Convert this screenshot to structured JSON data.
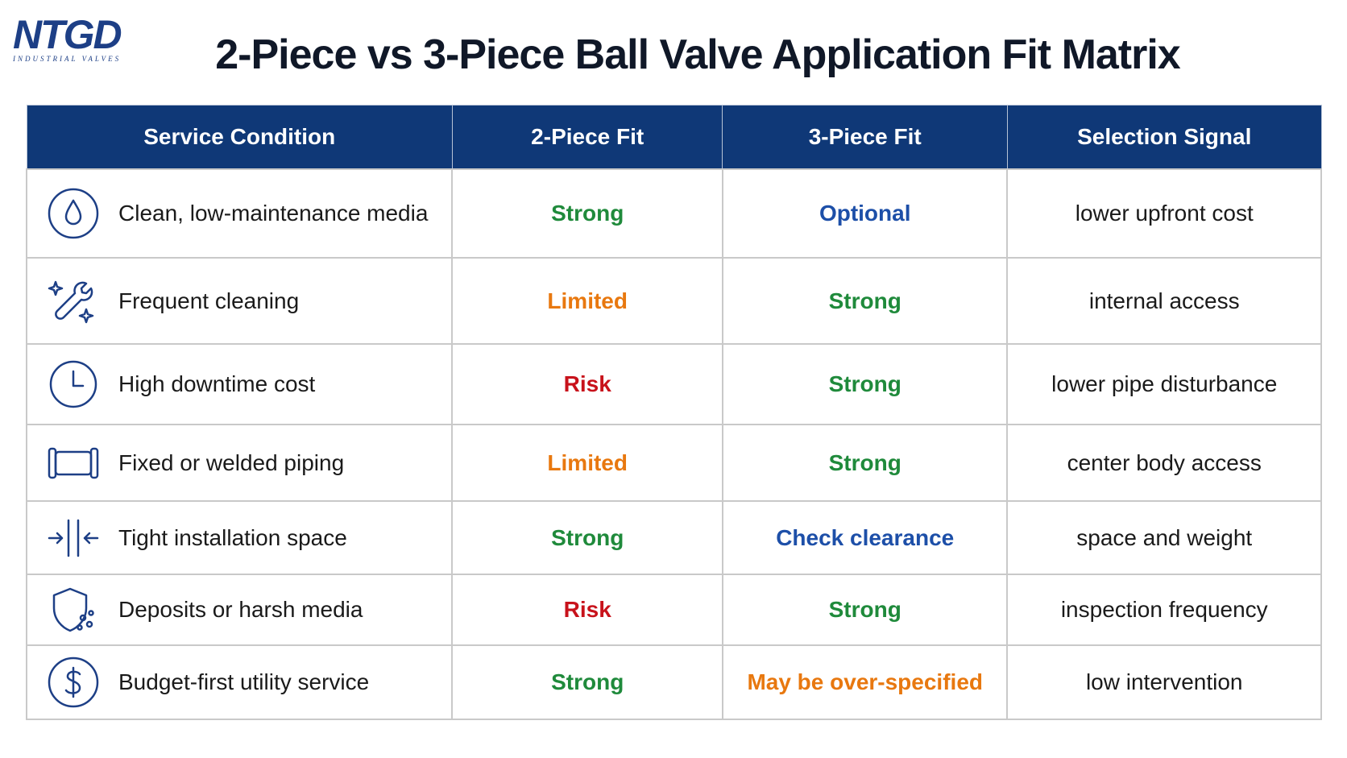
{
  "logo": {
    "brand": "NTGD",
    "tagline": "INDUSTRIAL VALVES"
  },
  "header": {
    "title": "2-Piece vs 3-Piece Ball Valve Application Fit Matrix"
  },
  "table": {
    "columns": [
      "Service Condition",
      "2-Piece Fit",
      "3-Piece Fit",
      "Selection Signal"
    ],
    "rows": [
      [
        "Clean, low-maintenance media",
        "Strong",
        "Optional",
        "lower upfront cost"
      ],
      [
        "Frequent cleaning",
        "Limited",
        "Strong",
        "internal access"
      ],
      [
        "High downtime cost",
        "Risk",
        "Strong",
        "lower pipe disturbance"
      ],
      [
        "Fixed or welded piping",
        "Limited",
        "Strong",
        "center body access"
      ],
      [
        "Tight installation space",
        "Strong",
        "Check clearance",
        "space and weight"
      ],
      [
        "Deposits or harsh media",
        "Risk",
        "Strong",
        "inspection frequency"
      ],
      [
        "Budget-first utility service",
        "Strong",
        "May be over-specified",
        "low intervention"
      ]
    ],
    "fit_colors": {
      "Strong": "#1f8a3b",
      "Optional": "#1d4fa8",
      "Limited": "#e8780f",
      "Risk": "#c8121b",
      "Check clearance": "#1d4fa8",
      "May be over-specified": "#e8780f"
    }
  }
}
